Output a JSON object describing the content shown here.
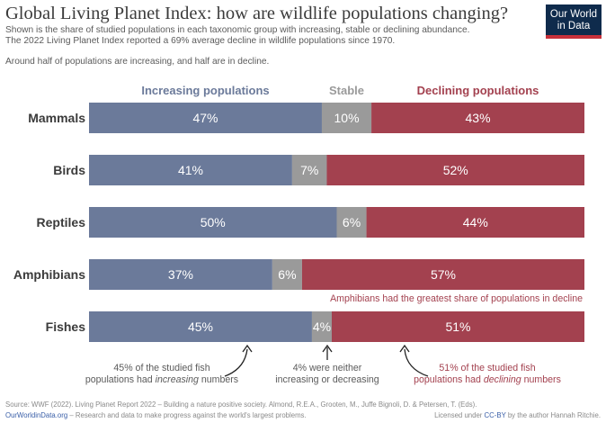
{
  "header": {
    "title": "Global Living Planet Index: how are wildlife populations changing?",
    "subtitle_line1": "Shown is the share of studied populations in each taxonomic group with increasing, stable or declining abundance.",
    "subtitle_line2": "The 2022 Living Planet Index reported a 69% average decline in wildlife populations since 1970.",
    "note": "Around half of populations are increasing, and half are in decline."
  },
  "logo": {
    "line1": "Our World",
    "line2": "in Data"
  },
  "footer": {
    "source": "Source: WWF (2022). Living Planet Report 2022 – Building a nature positive society. Almond, R.E.A., Grooten, M., Juffe Bignoli, D. & Petersen, T. (Eds).",
    "site": "OurWorldinData.org",
    "tagline": " – Research and data to make progress against the world's largest problems.",
    "license_prefix": "Licensed under ",
    "license": "CC-BY",
    "license_suffix": " by the author Hannah Ritchie."
  },
  "chart_data": {
    "type": "bar",
    "orientation": "horizontal",
    "stacked": true,
    "value_unit": "%",
    "categories": [
      "Mammals",
      "Birds",
      "Reptiles",
      "Amphibians",
      "Fishes"
    ],
    "series": [
      {
        "name": "Increasing populations",
        "values": [
          47,
          41,
          50,
          37,
          45
        ],
        "color": "#6b7a9a"
      },
      {
        "name": "Stable",
        "values": [
          10,
          7,
          6,
          6,
          4
        ],
        "color": "#9a9a9a"
      },
      {
        "name": "Declining populations",
        "values": [
          43,
          52,
          44,
          57,
          51
        ],
        "color": "#a3414f"
      }
    ],
    "annotations": [
      {
        "text": "Amphibians had the greatest share of populations in decline",
        "color": "#a3414f"
      },
      {
        "lines": [
          "45% of the studied fish",
          "populations had ",
          "increasing",
          " numbers"
        ],
        "color": "#5b5b5b"
      },
      {
        "lines": [
          "4% were neither",
          "increasing or decreasing"
        ],
        "color": "#5b5b5b"
      },
      {
        "lines": [
          "51% of the studied fish",
          "populations had ",
          "declining",
          " numbers"
        ],
        "color": "#a3414f"
      }
    ]
  }
}
